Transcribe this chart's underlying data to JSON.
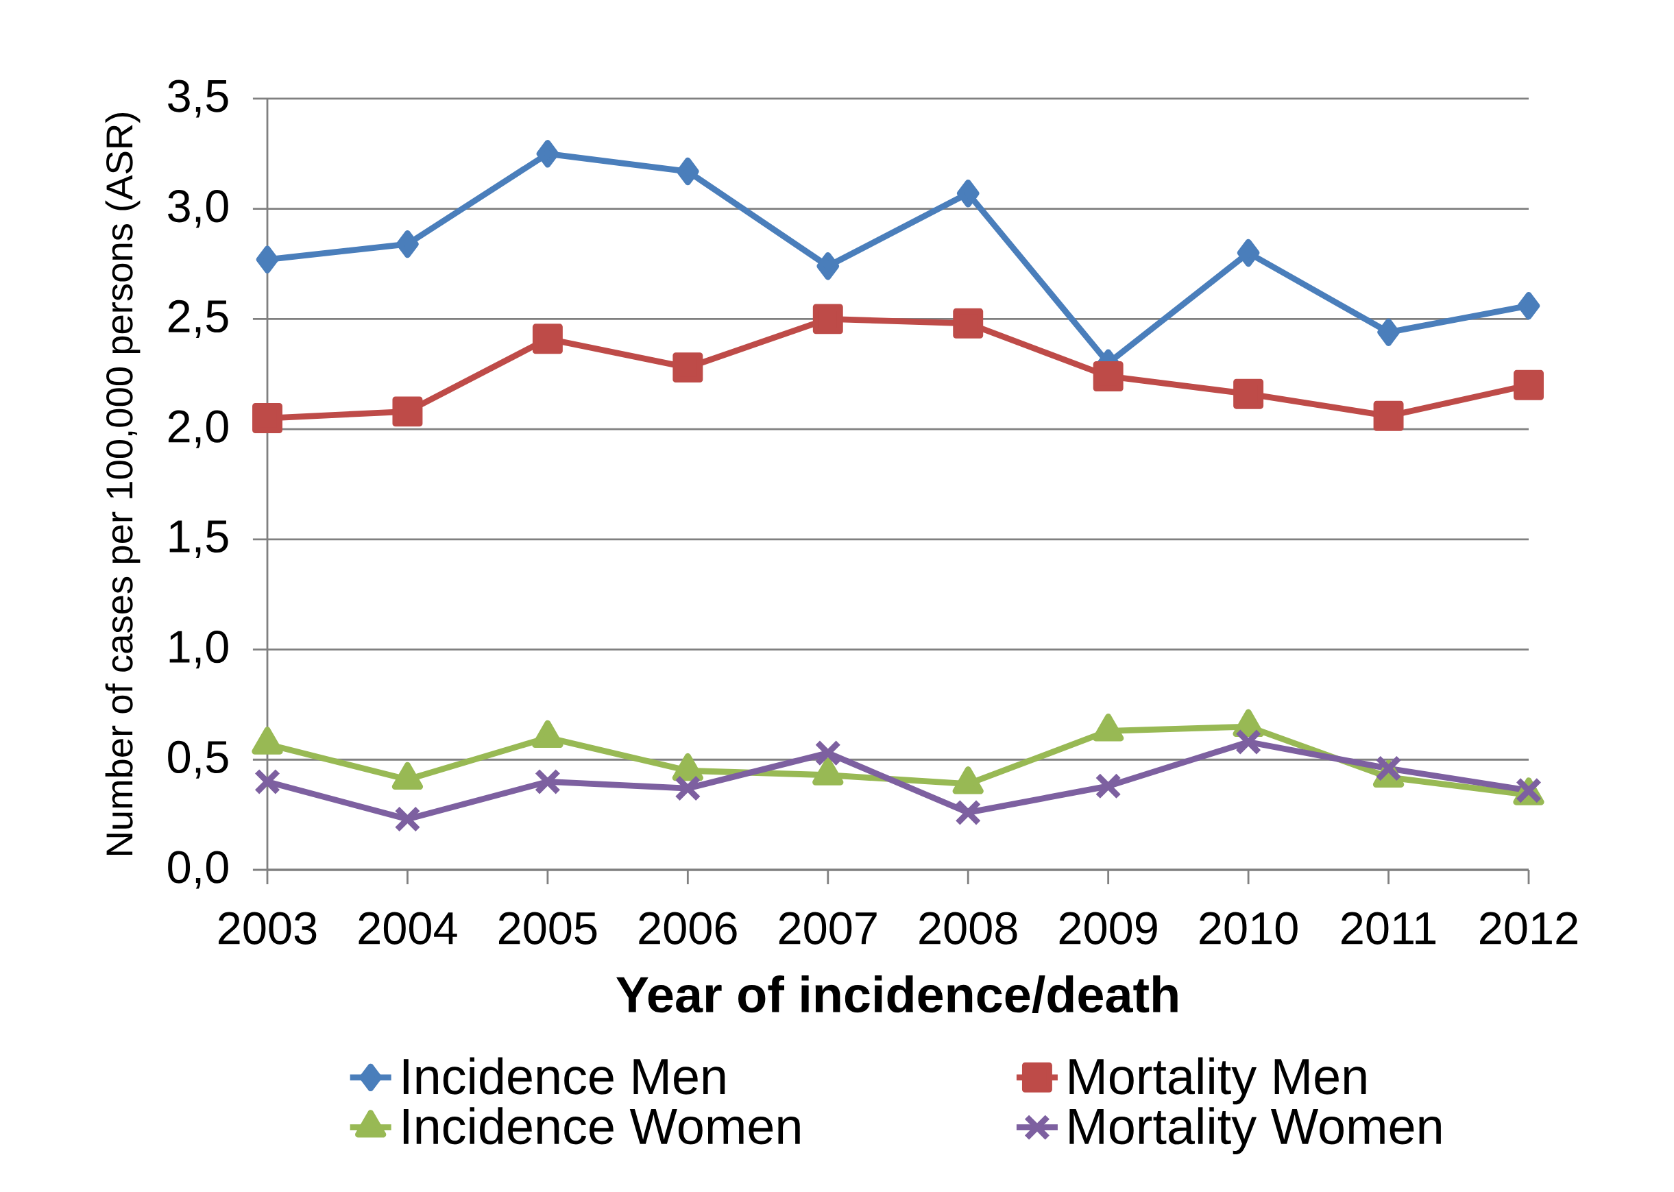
{
  "chart_data": {
    "type": "line",
    "xlabel": "Year of incidence/death",
    "ylabel": "Number of cases per 100,000 persons (ASR)",
    "categories": [
      "2003",
      "2004",
      "2005",
      "2006",
      "2007",
      "2008",
      "2009",
      "2010",
      "2011",
      "2012"
    ],
    "ylim": [
      0,
      3.5
    ],
    "yticks": [
      {
        "value": 0,
        "label": "0,0"
      },
      {
        "value": 0.5,
        "label": "0,5"
      },
      {
        "value": 1,
        "label": "1,0"
      },
      {
        "value": 1.5,
        "label": "1,5"
      },
      {
        "value": 2,
        "label": "2,0"
      },
      {
        "value": 2.5,
        "label": "2,5"
      },
      {
        "value": 3,
        "label": "3,0"
      },
      {
        "value": 3.5,
        "label": "3,5"
      }
    ],
    "grid": "y",
    "legend": "bottom",
    "series": [
      {
        "name": "Incidence Men",
        "color": "#4a7ebb",
        "marker": "diamond",
        "values": [
          2.77,
          2.84,
          3.25,
          3.17,
          2.74,
          3.07,
          2.3,
          2.8,
          2.44,
          2.56
        ]
      },
      {
        "name": "Mortality Men",
        "color": "#be4b48",
        "marker": "square",
        "values": [
          2.05,
          2.08,
          2.41,
          2.28,
          2.5,
          2.48,
          2.24,
          2.16,
          2.06,
          2.2
        ]
      },
      {
        "name": "Incidence Women",
        "color": "#98b954",
        "marker": "triangle",
        "values": [
          0.57,
          0.41,
          0.6,
          0.45,
          0.43,
          0.39,
          0.63,
          0.65,
          0.42,
          0.34
        ]
      },
      {
        "name": "Mortality Women",
        "color": "#7d60a0",
        "marker": "cross",
        "values": [
          0.4,
          0.23,
          0.4,
          0.37,
          0.53,
          0.26,
          0.38,
          0.58,
          0.46,
          0.36
        ]
      }
    ]
  }
}
